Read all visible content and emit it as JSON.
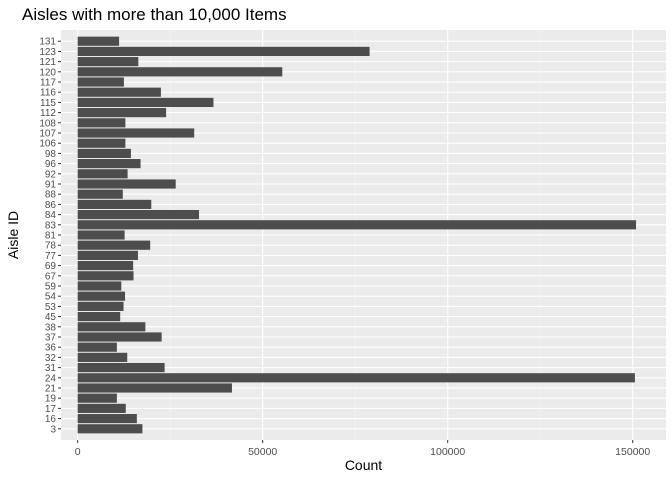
{
  "chart_data": {
    "type": "bar",
    "orientation": "horizontal",
    "title": "Aisles with more than 10,000 Items",
    "xlabel": "Count",
    "ylabel": "Aisle ID",
    "categories": [
      "3",
      "16",
      "17",
      "19",
      "21",
      "24",
      "31",
      "32",
      "36",
      "37",
      "38",
      "45",
      "53",
      "54",
      "59",
      "67",
      "69",
      "77",
      "78",
      "81",
      "83",
      "84",
      "86",
      "88",
      "91",
      "92",
      "96",
      "98",
      "106",
      "107",
      "108",
      "112",
      "115",
      "116",
      "117",
      "120",
      "121",
      "123",
      "131"
    ],
    "values": [
      17500,
      16000,
      13000,
      10600,
      41700,
      150600,
      23500,
      13400,
      10600,
      22700,
      18300,
      11500,
      12400,
      12800,
      11800,
      15100,
      15000,
      16300,
      19600,
      12700,
      150900,
      32800,
      19900,
      12200,
      26500,
      13500,
      17000,
      14400,
      12900,
      31500,
      12900,
      23900,
      36700,
      22500,
      12500,
      55300,
      16400,
      78900,
      11200
    ],
    "xlim": [
      -4500,
      159000
    ],
    "xticks": [
      0,
      50000,
      100000,
      150000
    ],
    "xtick_labels": [
      "0",
      "50000",
      "100000",
      "150000"
    ],
    "grid": true,
    "legend": "none",
    "colors": {
      "bar": "#4d4d4d",
      "panel": "#ebebeb",
      "grid_major": "#ffffff",
      "grid_minor": "#f5f5f5",
      "tick_text": "#4d4d4d",
      "text": "#000000"
    }
  }
}
